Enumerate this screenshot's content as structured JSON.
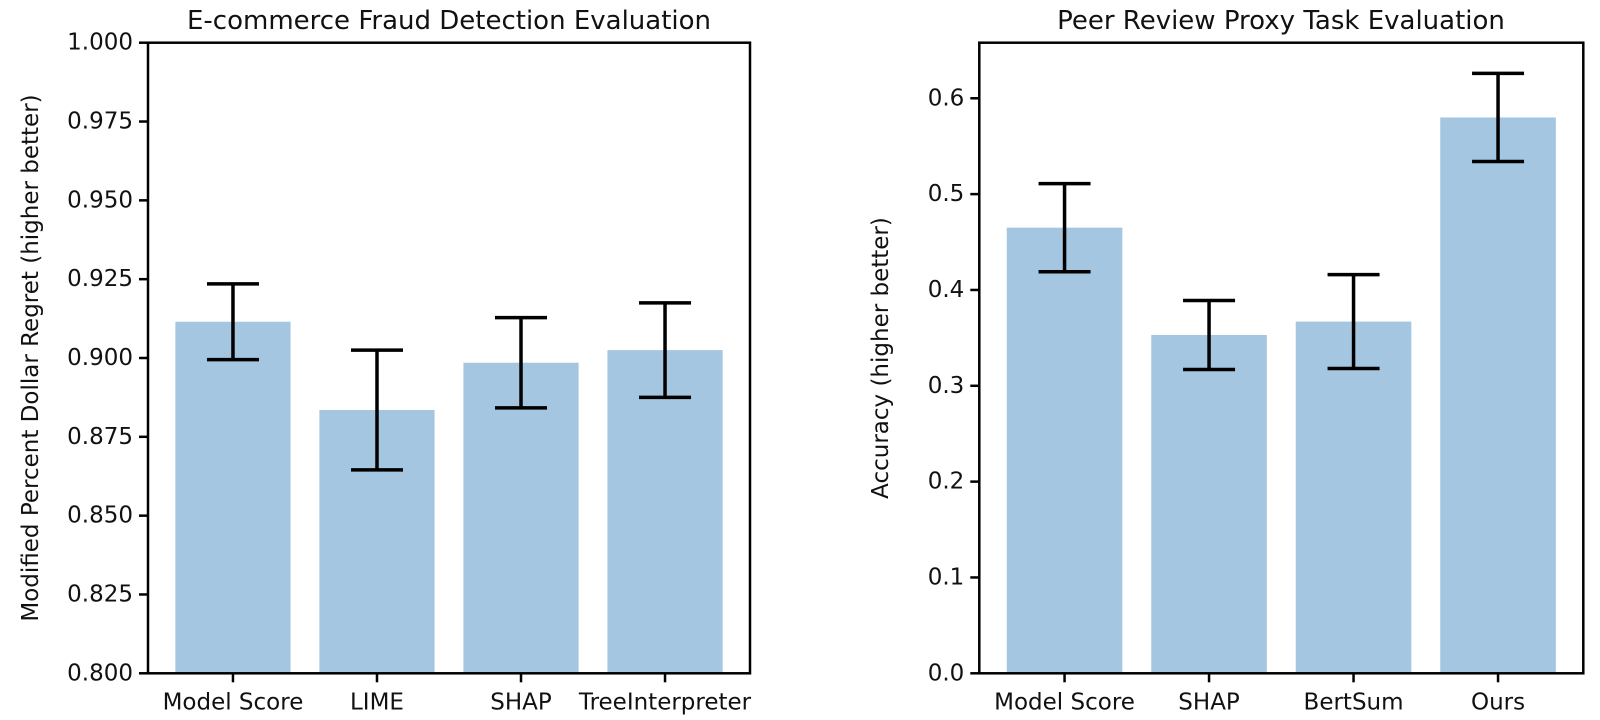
{
  "figure": {
    "background": "#ffffff",
    "bar_color": "#a5c6e0",
    "error_bar_color": "#000000",
    "axis_color": "#000000",
    "text_color": "#111111"
  },
  "chart_data": [
    {
      "type": "bar",
      "title": "E-commerce Fraud Detection Evaluation",
      "ylabel": "Modified Percent Dollar Regret (higher better)",
      "xlabel": "",
      "categories": [
        "Model Score",
        "LIME",
        "SHAP",
        "TreeInterpreter"
      ],
      "values": [
        0.9115,
        0.8835,
        0.8985,
        0.9025
      ],
      "errors": [
        0.012,
        0.019,
        0.0143,
        0.015
      ],
      "error_low": [
        0.8995,
        0.8645,
        0.8842,
        0.8875
      ],
      "error_high": [
        0.9235,
        0.9025,
        0.9128,
        0.9175
      ],
      "ylim": [
        0.8,
        1.0
      ],
      "yticks": [
        0.8,
        0.825,
        0.85,
        0.875,
        0.9,
        0.925,
        0.95,
        0.975,
        1.0
      ],
      "ytick_decimals": 3,
      "grid": false,
      "legend": null
    },
    {
      "type": "bar",
      "title": "Peer Review Proxy Task Evaluation",
      "ylabel": "Accuracy (higher better)",
      "xlabel": "",
      "categories": [
        "Model Score",
        "SHAP",
        "BertSum",
        "Ours"
      ],
      "values": [
        0.465,
        0.353,
        0.367,
        0.58
      ],
      "errors": [
        0.046,
        0.036,
        0.049,
        0.046
      ],
      "error_low": [
        0.419,
        0.317,
        0.318,
        0.534
      ],
      "error_high": [
        0.511,
        0.389,
        0.416,
        0.626
      ],
      "ylim": [
        0.0,
        0.658
      ],
      "yticks": [
        0.0,
        0.1,
        0.2,
        0.3,
        0.4,
        0.5,
        0.6
      ],
      "ytick_decimals": 1,
      "grid": false,
      "legend": null
    }
  ]
}
